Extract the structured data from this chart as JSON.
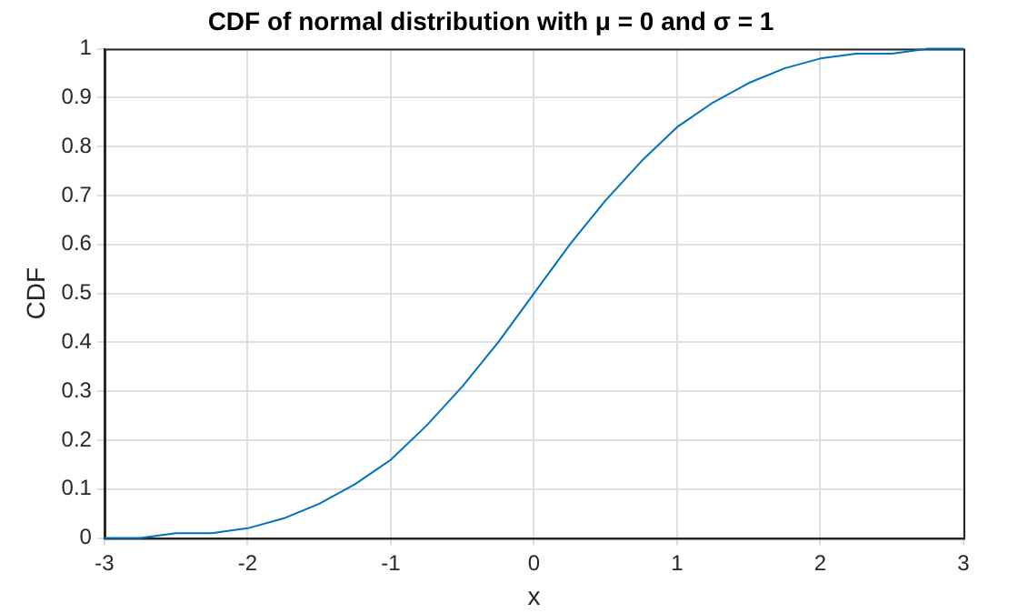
{
  "chart_data": {
    "type": "line",
    "title": "CDF of normal distribution with μ = 0 and σ = 1",
    "xlabel": "x",
    "ylabel": "CDF",
    "x": [
      -3,
      -2.75,
      -2.5,
      -2.25,
      -2,
      -1.75,
      -1.5,
      -1.25,
      -1,
      -0.75,
      -0.5,
      -0.25,
      0,
      0.25,
      0.5,
      0.75,
      1,
      1.25,
      1.5,
      1.75,
      2,
      2.25,
      2.5,
      2.75,
      3
    ],
    "series": [
      {
        "color": "#0072bd",
        "values": [
          0.0,
          0.0,
          0.01,
          0.01,
          0.02,
          0.04,
          0.07,
          0.11,
          0.16,
          0.23,
          0.31,
          0.4,
          0.5,
          0.6,
          0.69,
          0.77,
          0.84,
          0.89,
          0.93,
          0.96,
          0.98,
          0.99,
          0.99,
          1.0,
          1.0
        ]
      }
    ],
    "xlim": [
      -3,
      3
    ],
    "xticks": [
      -3,
      -2,
      -1,
      0,
      1,
      2,
      3
    ],
    "ylim": [
      0,
      1
    ],
    "yticks": [
      0,
      0.1,
      0.2,
      0.3,
      0.4,
      0.5,
      0.6,
      0.7,
      0.8,
      0.9,
      1
    ],
    "grid": true,
    "legend": false,
    "marker": "none",
    "line_style": "solid"
  }
}
